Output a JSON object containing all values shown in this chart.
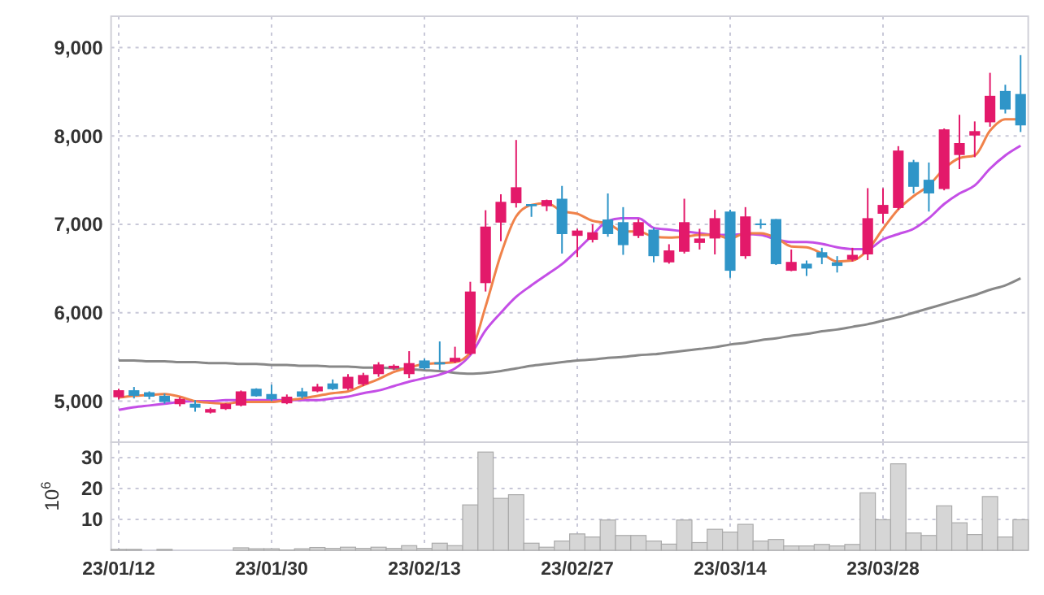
{
  "chart_data": [
    {
      "type": "candlestick",
      "categories": [
        null,
        null,
        null,
        null,
        null,
        null,
        null,
        null,
        null,
        null,
        null,
        null,
        null,
        null,
        null,
        null,
        null,
        null,
        null,
        null,
        null,
        null,
        null,
        null,
        null,
        null,
        null,
        null,
        null,
        null,
        null,
        null,
        null,
        null,
        null,
        null,
        null,
        null,
        null,
        null,
        null,
        null,
        null,
        null,
        null,
        null,
        null,
        null,
        null,
        null,
        null,
        null,
        null,
        null,
        null,
        null,
        null,
        null,
        null,
        null
      ],
      "ohlc": [
        [
          5043,
          5140,
          5018,
          5123
        ],
        [
          5123,
          5160,
          5030,
          5060
        ],
        [
          5100,
          5110,
          5020,
          5050
        ],
        [
          5060,
          5085,
          4970,
          4990
        ],
        [
          4965,
          5045,
          4940,
          5025
        ],
        [
          4970,
          5010,
          4880,
          4925
        ],
        [
          4870,
          4925,
          4860,
          4910
        ],
        [
          4910,
          4975,
          4900,
          4970
        ],
        [
          4950,
          5120,
          4940,
          5110
        ],
        [
          5140,
          5145,
          5050,
          5055
        ],
        [
          5080,
          5185,
          5000,
          5020
        ],
        [
          4975,
          5075,
          4965,
          5050
        ],
        [
          5110,
          5150,
          5030,
          5050
        ],
        [
          5110,
          5195,
          5100,
          5165
        ],
        [
          5200,
          5245,
          5125,
          5135
        ],
        [
          5140,
          5305,
          5125,
          5275
        ],
        [
          5190,
          5320,
          5170,
          5295
        ],
        [
          5305,
          5440,
          5275,
          5415
        ],
        [
          5370,
          5415,
          5350,
          5400
        ],
        [
          5305,
          5565,
          5260,
          5430
        ],
        [
          5460,
          5480,
          5355,
          5370
        ],
        [
          5440,
          5675,
          5355,
          5415
        ],
        [
          5445,
          5615,
          5430,
          5490
        ],
        [
          5535,
          6350,
          5520,
          6240
        ],
        [
          6335,
          7160,
          6240,
          6975
        ],
        [
          7020,
          7340,
          6810,
          7255
        ],
        [
          7240,
          7955,
          7190,
          7420
        ],
        [
          7230,
          7230,
          7085,
          7205
        ],
        [
          7205,
          7280,
          7150,
          7275
        ],
        [
          7290,
          7435,
          6670,
          6890
        ],
        [
          6870,
          6950,
          6630,
          6930
        ],
        [
          6825,
          7000,
          6795,
          6910
        ],
        [
          7055,
          7350,
          6860,
          6890
        ],
        [
          7025,
          7195,
          6655,
          6765
        ],
        [
          6870,
          7060,
          6845,
          7025
        ],
        [
          6940,
          6960,
          6570,
          6640
        ],
        [
          6570,
          6775,
          6555,
          6705
        ],
        [
          6690,
          7290,
          6670,
          7025
        ],
        [
          6790,
          6950,
          6715,
          6840
        ],
        [
          6840,
          7165,
          6660,
          7070
        ],
        [
          7145,
          7165,
          6395,
          6475
        ],
        [
          6640,
          7195,
          6610,
          7090
        ],
        [
          7010,
          7060,
          6950,
          6995
        ],
        [
          7060,
          7060,
          6540,
          6550
        ],
        [
          6475,
          6715,
          6470,
          6575
        ],
        [
          6555,
          6590,
          6415,
          6500
        ],
        [
          6685,
          6735,
          6550,
          6625
        ],
        [
          6570,
          6640,
          6455,
          6530
        ],
        [
          6600,
          6735,
          6580,
          6655
        ],
        [
          6660,
          7410,
          6595,
          7070
        ],
        [
          7120,
          7410,
          7010,
          7220
        ],
        [
          7185,
          7885,
          7165,
          7835
        ],
        [
          7705,
          7730,
          7350,
          7425
        ],
        [
          7505,
          7700,
          7145,
          7350
        ],
        [
          7400,
          8085,
          7385,
          8075
        ],
        [
          7785,
          8240,
          7625,
          7920
        ],
        [
          8005,
          8165,
          7760,
          8055
        ],
        [
          8155,
          8715,
          8105,
          8455
        ],
        [
          8510,
          8580,
          8255,
          8300
        ],
        [
          8475,
          8915,
          8045,
          8120
        ]
      ],
      "colors": [
        "#e3196a",
        "#2f95c8",
        "#2f95c8",
        "#2f95c8",
        "#e3196a",
        "#2f95c8",
        "#e3196a",
        "#e3196a",
        "#e3196a",
        "#2f95c8",
        "#2f95c8",
        "#e3196a",
        "#2f95c8",
        "#e3196a",
        "#2f95c8",
        "#e3196a",
        "#e3196a",
        "#e3196a",
        "#e3196a",
        "#e3196a",
        "#2f95c8",
        "#2f95c8",
        "#e3196a",
        "#e3196a",
        "#e3196a",
        "#e3196a",
        "#e3196a",
        "#2f95c8",
        "#e3196a",
        "#2f95c8",
        "#e3196a",
        "#e3196a",
        "#2f95c8",
        "#2f95c8",
        "#e3196a",
        "#2f95c8",
        "#e3196a",
        "#e3196a",
        "#e3196a",
        "#e3196a",
        "#2f95c8",
        "#e3196a",
        "#2f95c8",
        "#2f95c8",
        "#e3196a",
        "#2f95c8",
        "#2f95c8",
        "#2f95c8",
        "#e3196a",
        "#e3196a",
        "#e3196a",
        "#e3196a",
        "#2f95c8",
        "#2f95c8",
        "#e3196a",
        "#e3196a",
        "#e3196a",
        "#e3196a",
        "#2f95c8",
        "#2f95c8"
      ],
      "series": [
        {
          "type": "line",
          "color": "#888888",
          "values": [
            5460,
            5460,
            5450,
            5450,
            5440,
            5440,
            5430,
            5430,
            5420,
            5420,
            5410,
            5410,
            5400,
            5400,
            5390,
            5390,
            5380,
            5380,
            5370,
            5360,
            5350,
            5340,
            5320,
            5310,
            5320,
            5340,
            5370,
            5400,
            5420,
            5440,
            5460,
            5470,
            5490,
            5500,
            5520,
            5530,
            5550,
            5570,
            5590,
            5610,
            5640,
            5660,
            5690,
            5710,
            5740,
            5760,
            5790,
            5810,
            5840,
            5870,
            5910,
            5950,
            6000,
            6050,
            6100,
            6150,
            6200,
            6260,
            6310,
            6390
          ]
        },
        {
          "type": "line",
          "color": "#c44ee6",
          "values": [
            4900,
            4930,
            4950,
            4970,
            4990,
            5000,
            5000,
            5010,
            5010,
            5010,
            5010,
            5010,
            5010,
            5010,
            5030,
            5050,
            5090,
            5120,
            5170,
            5220,
            5260,
            5300,
            5370,
            5520,
            5800,
            6000,
            6180,
            6310,
            6430,
            6550,
            6710,
            6880,
            7040,
            7070,
            7070,
            6960,
            6940,
            6920,
            6900,
            6880,
            6880,
            6890,
            6880,
            6830,
            6800,
            6800,
            6780,
            6740,
            6720,
            6720,
            6830,
            6890,
            6950,
            7070,
            7230,
            7350,
            7440,
            7630,
            7780,
            7890
          ]
        },
        {
          "type": "line",
          "color": "#f0824a",
          "values": [
            5040,
            5060,
            5070,
            5080,
            5050,
            5000,
            4980,
            4970,
            4990,
            4990,
            4990,
            5010,
            5030,
            5060,
            5090,
            5110,
            5180,
            5250,
            5330,
            5380,
            5420,
            5430,
            5440,
            5550,
            6070,
            6660,
            7090,
            7220,
            7240,
            7150,
            7120,
            7040,
            7010,
            6920,
            6920,
            6860,
            6850,
            6860,
            6880,
            6880,
            6840,
            6900,
            6900,
            6850,
            6750,
            6740,
            6670,
            6580,
            6590,
            6710,
            6950,
            7170,
            7320,
            7440,
            7630,
            7750,
            7780,
            8060,
            8190,
            8190
          ]
        }
      ],
      "ylim": [
        4535,
        9355
      ],
      "yticks": [
        {
          "value": 5000,
          "label": "5,000"
        },
        {
          "value": 6000,
          "label": "6,000"
        },
        {
          "value": 7000,
          "label": "7,000"
        },
        {
          "value": 8000,
          "label": "8,000"
        },
        {
          "value": 9000,
          "label": "9,000"
        }
      ],
      "grid": true,
      "tick_labels": "y"
    },
    {
      "type": "bar",
      "categories": [
        "23/01/12",
        null,
        null,
        null,
        null,
        null,
        null,
        null,
        null,
        null,
        "23/01/30",
        null,
        null,
        null,
        null,
        null,
        null,
        null,
        null,
        null,
        "23/02/13",
        null,
        null,
        null,
        null,
        null,
        null,
        null,
        null,
        null,
        "23/02/27",
        null,
        null,
        null,
        null,
        null,
        null,
        null,
        null,
        null,
        "23/03/14",
        null,
        null,
        null,
        null,
        null,
        null,
        null,
        null,
        null,
        "23/03/28",
        null,
        null,
        null,
        null,
        null,
        null,
        null,
        null,
        null
      ],
      "values": [
        0.3,
        0.3,
        0,
        0.3,
        0,
        0,
        0,
        0,
        0.8,
        0.5,
        0.5,
        0.1,
        0.5,
        0.9,
        0.6,
        1,
        0.6,
        1,
        0.6,
        1.5,
        0.6,
        2.3,
        1.5,
        14.7,
        31.8,
        16.8,
        18,
        2.3,
        1,
        3,
        5.3,
        4.3,
        9.8,
        4.8,
        4.8,
        3,
        2,
        9.8,
        2.5,
        6.8,
        5.9,
        8.4,
        3,
        3.5,
        1.4,
        1.4,
        1.9,
        1.4,
        1.9,
        18.6,
        9.9,
        28,
        5.6,
        4.8,
        14.4,
        8.9,
        5.1,
        17.4,
        4.3,
        9.9
      ],
      "color": "#d6d6d6",
      "ylim": [
        0,
        35
      ],
      "yticks": [
        10,
        20,
        30
      ],
      "ylabel": "10$^{6}$",
      "grid": true
    }
  ]
}
